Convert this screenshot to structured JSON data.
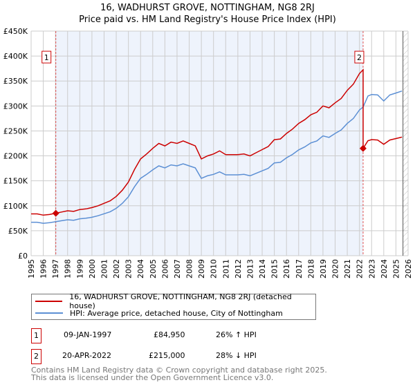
{
  "chart_data": {
    "type": "line",
    "title": "16, WADHURST GROVE, NOTTINGHAM, NG8 2RJ",
    "subtitle": "Price paid vs. HM Land Registry's House Price Index (HPI)",
    "xlim": [
      1995,
      2026
    ],
    "ylim": [
      0,
      450000
    ],
    "x_ticks": [
      "1995",
      "1996",
      "1997",
      "1998",
      "1999",
      "2000",
      "2001",
      "2002",
      "2003",
      "2004",
      "2005",
      "2006",
      "2007",
      "2008",
      "2009",
      "2010",
      "2011",
      "2012",
      "2013",
      "2014",
      "2015",
      "2016",
      "2017",
      "2018",
      "2019",
      "2020",
      "2021",
      "2022",
      "2023",
      "2024",
      "2025",
      "2026"
    ],
    "y_ticks": [
      {
        "v": 0,
        "label": "£0"
      },
      {
        "v": 50000,
        "label": "£50K"
      },
      {
        "v": 100000,
        "label": "£100K"
      },
      {
        "v": 150000,
        "label": "£150K"
      },
      {
        "v": 200000,
        "label": "£200K"
      },
      {
        "v": 250000,
        "label": "£250K"
      },
      {
        "v": 300000,
        "label": "£300K"
      },
      {
        "v": 350000,
        "label": "£350K"
      },
      {
        "v": 400000,
        "label": "£400K"
      },
      {
        "v": 450000,
        "label": "£450K"
      }
    ],
    "grid": true,
    "shaded_period": [
      1997.03,
      2022.3
    ],
    "hatched_after": 2025.58,
    "series": [
      {
        "name": "16, WADHURST GROVE, NOTTINGHAM, NG8 2RJ (detached house)",
        "color": "#cc0000",
        "x": [
          1995,
          1995.5,
          1996,
          1996.5,
          1997,
          1997.5,
          1998,
          1998.5,
          1999,
          1999.5,
          2000,
          2000.5,
          2001,
          2001.5,
          2002,
          2002.5,
          2003,
          2003.5,
          2004,
          2004.5,
          2005,
          2005.5,
          2006,
          2006.5,
          2007,
          2007.5,
          2008,
          2008.5,
          2009,
          2009.5,
          2010,
          2010.5,
          2011,
          2011.5,
          2012,
          2012.5,
          2013,
          2013.5,
          2014,
          2014.5,
          2015,
          2015.5,
          2016,
          2016.5,
          2017,
          2017.5,
          2018,
          2018.5,
          2019,
          2019.5,
          2020,
          2020.5,
          2021,
          2021.5,
          2022,
          2022.3,
          2022.3,
          2022.7,
          2023,
          2023.5,
          2024,
          2024.5,
          2025,
          2025.5
        ],
        "y": [
          83800,
          83800,
          81300,
          82500,
          85000,
          87500,
          90000,
          88800,
          92500,
          93800,
          96300,
          100000,
          105000,
          110000,
          118800,
          131300,
          147500,
          172500,
          193800,
          203800,
          215000,
          225000,
          220000,
          227500,
          225000,
          230000,
          225000,
          220000,
          193800,
          200000,
          203800,
          210000,
          202500,
          202500,
          202500,
          203800,
          200000,
          206300,
          212500,
          218800,
          232500,
          233800,
          245000,
          253800,
          265000,
          272500,
          282500,
          287500,
          300000,
          296300,
          306300,
          315000,
          331300,
          343800,
          365000,
          372500,
          215000,
          230400,
          232600,
          231800,
          223200,
          231800,
          234700,
          237600
        ]
      },
      {
        "name": "HPI: Average price, detached house, City of Nottingham",
        "color": "#5b8fd4",
        "x": [
          1995,
          1995.5,
          1996,
          1996.5,
          1997,
          1997.5,
          1998,
          1998.5,
          1999,
          1999.5,
          2000,
          2000.5,
          2001,
          2001.5,
          2002,
          2002.5,
          2003,
          2003.5,
          2004,
          2004.5,
          2005,
          2005.5,
          2006,
          2006.5,
          2007,
          2007.5,
          2008,
          2008.5,
          2009,
          2009.5,
          2010,
          2010.5,
          2011,
          2011.5,
          2012,
          2012.5,
          2013,
          2013.5,
          2014,
          2014.5,
          2015,
          2015.5,
          2016,
          2016.5,
          2017,
          2017.5,
          2018,
          2018.5,
          2019,
          2019.5,
          2020,
          2020.5,
          2021,
          2021.5,
          2022,
          2022.3,
          2022.7,
          2023,
          2023.5,
          2024,
          2024.5,
          2025,
          2025.5
        ],
        "y": [
          67000,
          67000,
          65000,
          66000,
          68000,
          70000,
          72000,
          71000,
          74000,
          75000,
          77000,
          80000,
          84000,
          88000,
          95000,
          105000,
          118000,
          138000,
          155000,
          163000,
          172000,
          180000,
          176000,
          182000,
          180000,
          184000,
          180000,
          176000,
          155000,
          160000,
          163000,
          168000,
          162000,
          162000,
          162000,
          163000,
          160000,
          165000,
          170000,
          175000,
          186000,
          187000,
          196000,
          203000,
          212000,
          218000,
          226000,
          230000,
          240000,
          237000,
          245000,
          252000,
          265000,
          275000,
          292000,
          298000,
          320000,
          323000,
          322000,
          310000,
          322000,
          326000,
          330000
        ]
      }
    ],
    "sales": [
      {
        "id": "1",
        "x": 1997.03,
        "y": 84950,
        "date": "09-JAN-1997",
        "price": "£84,950",
        "hpi_diff": "26% ↑ HPI"
      },
      {
        "id": "2",
        "x": 2022.3,
        "y": 215000,
        "date": "20-APR-2022",
        "price": "£215,000",
        "hpi_diff": "28% ↓ HPI"
      }
    ]
  },
  "footer": {
    "line1": "Contains HM Land Registry data © Crown copyright and database right 2025.",
    "line2": "This data is licensed under the Open Government Licence v3.0."
  }
}
